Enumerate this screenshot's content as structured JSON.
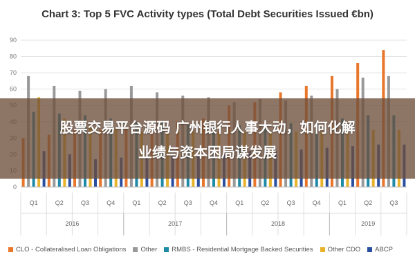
{
  "chart_data": {
    "type": "bar",
    "title": "Chart 3: Top 5 FVC Activity types (Total Debt Securities Issued €bn)",
    "xlabel": "",
    "ylabel": "",
    "ylim": [
      0,
      90
    ],
    "yticks": [
      0,
      10,
      20,
      30,
      40,
      50,
      60,
      70,
      80,
      90
    ],
    "grid": true,
    "legend_position": "bottom",
    "categories": [
      "Q1",
      "Q2",
      "Q3",
      "Q4",
      "Q1",
      "Q2",
      "Q3",
      "Q4",
      "Q1",
      "Q2",
      "Q3",
      "Q4",
      "Q1",
      "Q2",
      "Q3"
    ],
    "groups": [
      {
        "label": "2016",
        "count": 4
      },
      {
        "label": "2017",
        "count": 4
      },
      {
        "label": "2018",
        "count": 4
      },
      {
        "label": "2019",
        "count": 3
      }
    ],
    "series": [
      {
        "name": "CLO - Collateralised Loan Obligations",
        "color": "#E8762B",
        "values": [
          30,
          32,
          35,
          35,
          36,
          38,
          40,
          42,
          50,
          52,
          58,
          62,
          68,
          76,
          84
        ]
      },
      {
        "name": "Other",
        "color": "#999999",
        "values": [
          68,
          62,
          59,
          60,
          62,
          58,
          56,
          55,
          52,
          54,
          53,
          56,
          60,
          67,
          68
        ]
      },
      {
        "name": "RMBS - Residential Mortgage Backed Securities",
        "color": "#1F8AA8",
        "values": [
          46,
          45,
          44,
          42,
          40,
          40,
          38,
          38,
          38,
          38,
          39,
          40,
          42,
          44,
          44
        ]
      },
      {
        "name": "Other CDO",
        "color": "#E8B32A",
        "values": [
          55,
          42,
          38,
          36,
          34,
          34,
          34,
          34,
          34,
          34,
          34,
          34,
          35,
          35,
          35
        ]
      },
      {
        "name": "ABCP",
        "color": "#2B4FA0",
        "values": [
          22,
          20,
          17,
          18,
          18,
          19,
          20,
          21,
          22,
          22,
          23,
          24,
          25,
          26,
          26
        ]
      }
    ]
  },
  "overlay": {
    "line1": "股票交易平台源码 广州银行人事大动，如何化解",
    "line2": "业绩与资本困局谋发展"
  }
}
